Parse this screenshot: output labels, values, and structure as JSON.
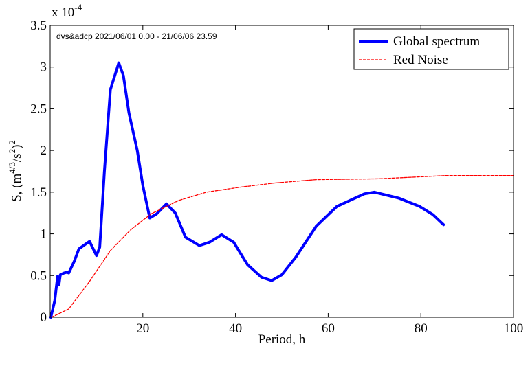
{
  "chart_data": {
    "type": "line",
    "title": "",
    "annotation": "dvs&adcp 2021/06/01 0.00 - 21/06/06 23.59",
    "xlabel": "Period, h",
    "ylabel_prefix": "S, (m",
    "ylabel_sup1": "4/3",
    "ylabel_mid": "/s",
    "ylabel_sup2": "2",
    "ylabel_end": ")",
    "ylabel_sup3": "2",
    "y_multiplier": "x 10",
    "y_multiplier_exp": "-4",
    "xlim": [
      0,
      100
    ],
    "ylim": [
      0,
      3.5
    ],
    "xticks": [
      20,
      40,
      60,
      80,
      100
    ],
    "yticks": [
      0,
      0.5,
      1,
      1.5,
      2,
      2.5,
      3,
      3.5
    ],
    "ytick_labels": [
      "0",
      "0.5",
      "1",
      "1.5",
      "2",
      "2.5",
      "3",
      "3.5"
    ],
    "legend_placement": "top-right",
    "series": [
      {
        "name": "Global spectrum",
        "color": "#0000ff",
        "style": "solid",
        "x": [
          0.15,
          0.4,
          1.0,
          1.6,
          1.9,
          2.2,
          3.0,
          3.6,
          4.0,
          5.2,
          6.2,
          8.5,
          10,
          10.7,
          11.7,
          13,
          14.8,
          15.8,
          17,
          18.8,
          20,
          21.5,
          23,
          25.1,
          27,
          29.2,
          32.2,
          34.4,
          37,
          39.6,
          42.6,
          45.6,
          47.8,
          50,
          53,
          57.4,
          61.9,
          67.8,
          70,
          75.2,
          79.7,
          82.6,
          84.9
        ],
        "y": [
          0,
          0.06,
          0.2,
          0.49,
          0.39,
          0.51,
          0.53,
          0.54,
          0.53,
          0.67,
          0.82,
          0.91,
          0.74,
          0.84,
          1.75,
          2.73,
          3.05,
          2.9,
          2.45,
          2.0,
          1.58,
          1.19,
          1.24,
          1.36,
          1.25,
          0.96,
          0.86,
          0.9,
          0.99,
          0.9,
          0.63,
          0.48,
          0.44,
          0.51,
          0.72,
          1.09,
          1.33,
          1.48,
          1.5,
          1.43,
          1.33,
          1.23,
          1.11
        ]
      },
      {
        "name": "Red Noise",
        "color": "#ff0000",
        "style": "dashed",
        "x": [
          0.3,
          4,
          8.5,
          13,
          17.4,
          21.8,
          27.7,
          33.7,
          41,
          48.5,
          57.4,
          70.8,
          85.6,
          100
        ],
        "y": [
          0,
          0.1,
          0.43,
          0.8,
          1.05,
          1.24,
          1.4,
          1.5,
          1.56,
          1.61,
          1.65,
          1.66,
          1.7,
          1.7
        ]
      }
    ]
  }
}
